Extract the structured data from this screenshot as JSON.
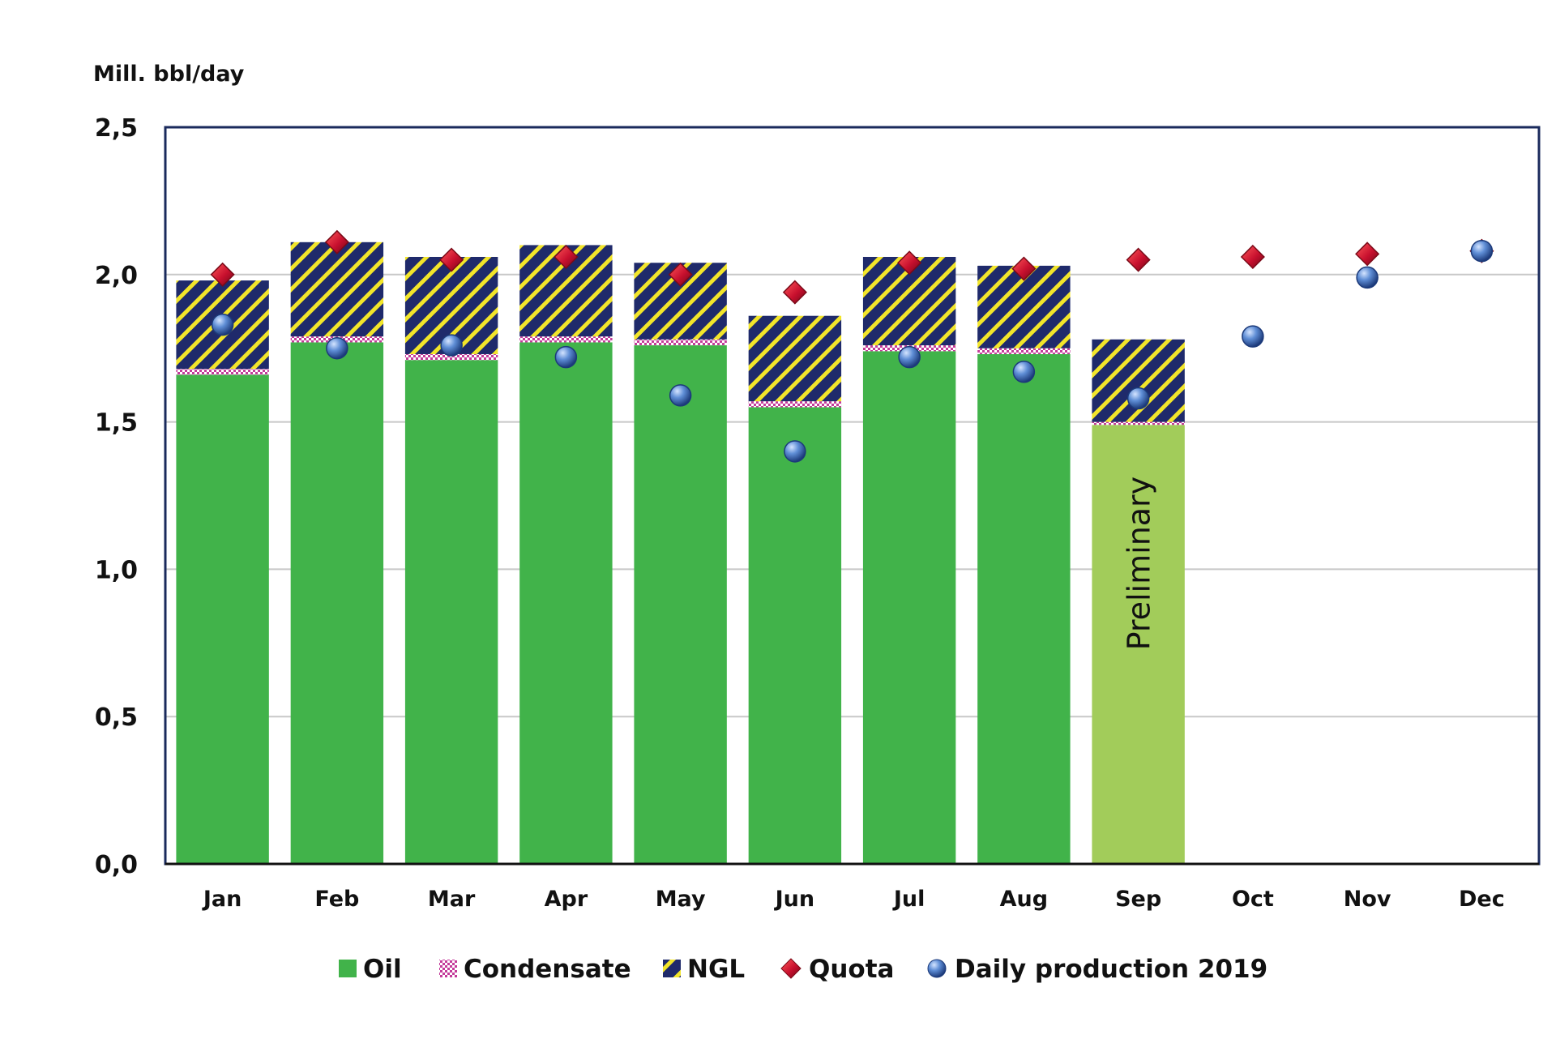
{
  "chart_data": {
    "type": "bar",
    "stacked": true,
    "ylabel": "Mill. bbl/day",
    "ylim": [
      0,
      2.5
    ],
    "yticks": [
      "0,0",
      "0,5",
      "1,0",
      "1,5",
      "2,0",
      "2,5"
    ],
    "ytick_values": [
      0,
      0.5,
      1.0,
      1.5,
      2.0,
      2.5
    ],
    "categories": [
      "Jan",
      "Feb",
      "Mar",
      "Apr",
      "May",
      "Jun",
      "Jul",
      "Aug",
      "Sep",
      "Oct",
      "Nov",
      "Dec"
    ],
    "series": [
      {
        "name": "Oil",
        "kind": "bar",
        "color": "#41b34a",
        "values": [
          1.66,
          1.77,
          1.71,
          1.77,
          1.76,
          1.55,
          1.74,
          1.73,
          1.49,
          null,
          null,
          null
        ]
      },
      {
        "name": "Condensate",
        "kind": "bar",
        "color": "#c43c9a",
        "values": [
          0.02,
          0.02,
          0.02,
          0.02,
          0.02,
          0.02,
          0.02,
          0.02,
          0.01,
          null,
          null,
          null
        ]
      },
      {
        "name": "NGL",
        "kind": "bar",
        "color": "#1f2a6b",
        "values": [
          0.3,
          0.32,
          0.33,
          0.31,
          0.26,
          0.29,
          0.3,
          0.28,
          0.28,
          null,
          null,
          null
        ]
      },
      {
        "name": "Quota",
        "kind": "marker",
        "marker": "diamond",
        "color": "#c8102e",
        "values": [
          2.0,
          2.11,
          2.05,
          2.06,
          2.0,
          1.94,
          2.04,
          2.02,
          2.05,
          2.06,
          2.07,
          2.08
        ]
      },
      {
        "name": "Daily production 2019",
        "kind": "marker",
        "marker": "circle",
        "color": "#4a74c4",
        "values": [
          1.83,
          1.75,
          1.76,
          1.72,
          1.59,
          1.4,
          1.72,
          1.67,
          1.58,
          1.79,
          1.99,
          2.08
        ]
      }
    ],
    "highlight": {
      "category": "Sep",
      "color": "#a2cc5a",
      "annotation": "Preliminary"
    },
    "gridlines": true,
    "legend": "bottom",
    "legend_labels": [
      "Oil",
      "Condensate",
      "NGL",
      "Quota",
      "Daily production 2019"
    ]
  }
}
